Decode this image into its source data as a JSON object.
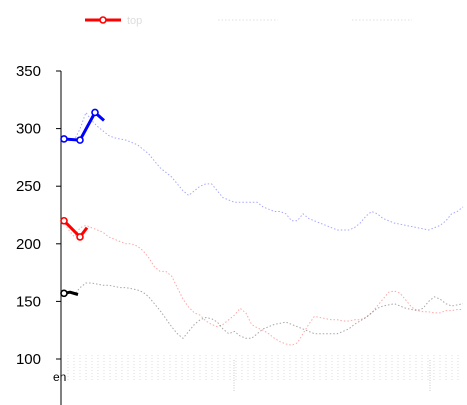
{
  "chart_data": {
    "type": "line",
    "legend": {
      "placement": "top",
      "entries": [
        "top",
        "",
        ""
      ]
    },
    "ylim": [
      100,
      350
    ],
    "yticks": [
      100,
      150,
      200,
      250,
      300,
      350
    ],
    "x_start_label": "en",
    "series": [
      {
        "name": "top",
        "color": "#ff0000",
        "solid_values": [
          220,
          206,
          214
        ],
        "values": [
          220,
          212,
          206,
          214,
          216,
          214,
          212,
          210,
          206,
          204,
          202,
          200,
          200,
          198,
          194,
          188,
          180,
          176,
          176,
          172,
          162,
          152,
          145,
          140,
          138,
          133,
          130,
          128,
          130,
          134,
          138,
          144,
          140,
          130,
          127,
          125,
          122,
          118,
          115,
          113,
          112,
          114,
          122,
          130,
          137,
          136,
          135,
          134,
          134,
          133,
          133,
          134,
          134,
          136,
          140,
          146,
          152,
          158,
          159,
          157,
          151,
          145,
          142,
          141,
          141,
          140,
          140,
          142,
          142,
          143,
          143
        ]
      },
      {
        "name": "",
        "color": "#0000ff",
        "solid_values": [
          291,
          290,
          314,
          307
        ],
        "values": [
          291,
          291,
          290,
          300,
          314,
          307,
          302,
          298,
          294,
          292,
          291,
          290,
          288,
          286,
          282,
          278,
          272,
          266,
          262,
          258,
          252,
          246,
          242,
          246,
          250,
          252,
          252,
          246,
          240,
          238,
          236,
          236,
          236,
          236,
          236,
          232,
          230,
          228,
          228,
          226,
          220,
          220,
          226,
          222,
          220,
          218,
          216,
          214,
          212,
          212,
          212,
          214,
          218,
          224,
          228,
          226,
          222,
          220,
          218,
          217,
          216,
          215,
          214,
          213,
          212,
          214,
          216,
          220,
          226,
          228,
          232
        ]
      },
      {
        "name": "",
        "color": "#000000",
        "solid_values": [
          157,
          158,
          156
        ],
        "values": [
          157,
          158,
          156,
          162,
          166,
          166,
          165,
          164,
          164,
          163,
          162,
          162,
          161,
          160,
          158,
          154,
          148,
          142,
          135,
          128,
          122,
          118,
          124,
          130,
          134,
          136,
          135,
          132,
          126,
          122,
          124,
          120,
          118,
          118,
          122,
          126,
          128,
          130,
          131,
          132,
          130,
          128,
          126,
          124,
          122,
          122,
          122,
          122,
          122,
          124,
          126,
          130,
          133,
          136,
          140,
          144,
          146,
          147,
          148,
          146,
          144,
          143,
          142,
          144,
          150,
          154,
          152,
          148,
          146,
          147,
          148
        ]
      }
    ]
  }
}
